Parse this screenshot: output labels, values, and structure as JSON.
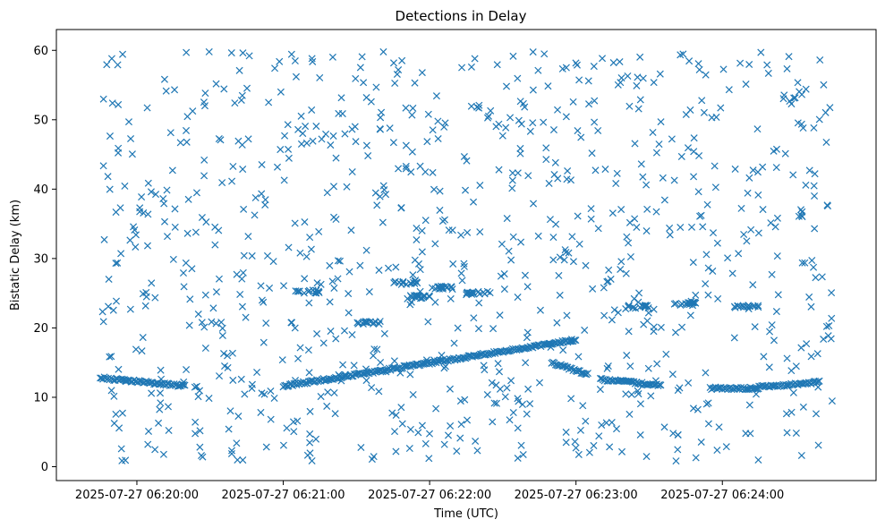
{
  "chart_data": {
    "type": "scatter",
    "title": "Detections in Delay",
    "xlabel": "Time (UTC)",
    "ylabel": "Bistatic Delay (km)",
    "x_start": "2025-07-27 06:19:45",
    "x_end": "2025-07-27 06:24:45",
    "xlim": [
      "2025-07-27 06:19:27",
      "2025-07-27 06:25:03"
    ],
    "ylim": [
      -2,
      63
    ],
    "x_ticks": [
      "2025-07-27 06:20:00",
      "2025-07-27 06:21:00",
      "2025-07-27 06:22:00",
      "2025-07-27 06:23:00",
      "2025-07-27 06:24:00"
    ],
    "y_ticks": [
      0,
      10,
      20,
      30,
      40,
      50,
      60
    ],
    "marker": "x",
    "color": "#1f77b4",
    "grid": false,
    "series": [
      {
        "tracks": [
          {
            "t0": "2025-07-27 06:19:45",
            "t1": "2025-07-27 06:20:20",
            "y0": 12.8,
            "y1": 11.6
          },
          {
            "t0": "2025-07-27 06:21:00",
            "t1": "2025-07-27 06:23:00",
            "y0": 11.6,
            "y1": 18.3
          },
          {
            "t0": "2025-07-27 06:22:50",
            "t1": "2025-07-27 06:23:05",
            "y0": 15.0,
            "y1": 13.3
          },
          {
            "t0": "2025-07-27 06:23:10",
            "t1": "2025-07-27 06:23:35",
            "y0": 12.6,
            "y1": 11.7
          },
          {
            "t0": "2025-07-27 06:23:55",
            "t1": "2025-07-27 06:24:15",
            "y0": 11.3,
            "y1": 11.3
          },
          {
            "t0": "2025-07-27 06:24:15",
            "t1": "2025-07-27 06:24:40",
            "y0": 11.5,
            "y1": 12.2
          }
        ],
        "clusters": [
          {
            "t": "2025-07-27 06:21:10",
            "y": 25.2
          },
          {
            "t": "2025-07-27 06:21:35",
            "y": 20.8
          },
          {
            "t": "2025-07-27 06:21:50",
            "y": 26.5
          },
          {
            "t": "2025-07-27 06:21:55",
            "y": 24.5
          },
          {
            "t": "2025-07-27 06:22:05",
            "y": 25.8
          },
          {
            "t": "2025-07-27 06:22:20",
            "y": 25.0
          },
          {
            "t": "2025-07-27 06:23:25",
            "y": 23.0
          },
          {
            "t": "2025-07-27 06:23:45",
            "y": 23.5
          },
          {
            "t": "2025-07-27 06:24:10",
            "y": 23.0
          }
        ],
        "noise_count": 900
      }
    ]
  }
}
